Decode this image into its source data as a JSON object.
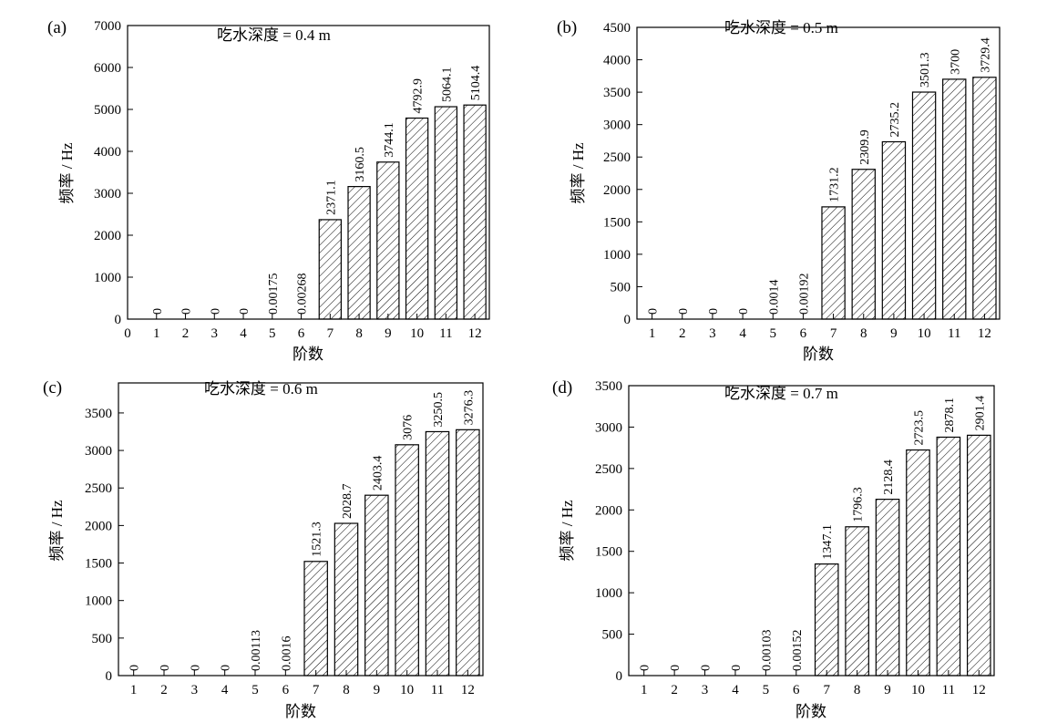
{
  "figure": {
    "bar_color": "#000000",
    "hatch": "diagonal"
  },
  "chart_data": [
    {
      "type": "bar",
      "panel_label": "(a)",
      "title": "吃水深度 = 0.4 m",
      "xlabel": "阶数",
      "ylabel": "频率 / Hz",
      "categories": [
        "1",
        "2",
        "3",
        "4",
        "5",
        "6",
        "7",
        "8",
        "9",
        "10",
        "11",
        "12"
      ],
      "values": [
        0,
        0,
        0,
        0,
        0.00175,
        0.00268,
        2371.1,
        3160.5,
        3744.1,
        4792.9,
        5064.1,
        5104.4
      ],
      "data_labels": [
        "0",
        "0",
        "0",
        "0",
        "0.00175",
        "0.00268",
        "2371.1",
        "3160.5",
        "3744.1",
        "4792.9",
        "5064.1",
        "5104.4"
      ],
      "xlim": [
        0,
        12.5
      ],
      "ylim": [
        0,
        7000
      ],
      "xticks": [
        "0",
        "1",
        "2",
        "3",
        "4",
        "5",
        "6",
        "7",
        "8",
        "9",
        "10",
        "11",
        "12"
      ],
      "yticks": [
        "0",
        "1000",
        "2000",
        "3000",
        "4000",
        "5000",
        "6000",
        "7000"
      ],
      "grid": false
    },
    {
      "type": "bar",
      "panel_label": "(b)",
      "title": "吃水深度 = 0.5 m",
      "xlabel": "阶数",
      "ylabel": "频率 / Hz",
      "categories": [
        "1",
        "2",
        "3",
        "4",
        "5",
        "6",
        "7",
        "8",
        "9",
        "10",
        "11",
        "12"
      ],
      "values": [
        0,
        0,
        0,
        0,
        0.0014,
        0.00192,
        1731.2,
        2309.9,
        2735.2,
        3501.3,
        3700,
        3729.4
      ],
      "data_labels": [
        "0",
        "0",
        "0",
        "0",
        "0.0014",
        "0.00192",
        "1731.2",
        "2309.9",
        "2735.2",
        "3501.3",
        "3700",
        "3729.4"
      ],
      "xlim": [
        0.5,
        12.5
      ],
      "ylim": [
        0,
        4500
      ],
      "xticks": [
        "1",
        "2",
        "3",
        "4",
        "5",
        "6",
        "7",
        "8",
        "9",
        "10",
        "11",
        "12"
      ],
      "yticks": [
        "0",
        "500",
        "1000",
        "1500",
        "2000",
        "2500",
        "3000",
        "3500",
        "4000",
        "4500"
      ],
      "grid": false
    },
    {
      "type": "bar",
      "panel_label": "(c)",
      "title": "吃水深度 = 0.6 m",
      "xlabel": "阶数",
      "ylabel": "频率 / Hz",
      "categories": [
        "1",
        "2",
        "3",
        "4",
        "5",
        "6",
        "7",
        "8",
        "9",
        "10",
        "11",
        "12"
      ],
      "values": [
        0,
        0,
        0,
        0,
        0.00113,
        0.0016,
        1521.3,
        2028.7,
        2403.4,
        3076,
        3250.5,
        3276.3
      ],
      "data_labels": [
        "0",
        "0",
        "0",
        "0",
        "0.00113",
        "0.0016",
        "1521.3",
        "2028.7",
        "2403.4",
        "3076",
        "3250.5",
        "3276.3"
      ],
      "xlim": [
        0.5,
        12.5
      ],
      "ylim": [
        0,
        3900
      ],
      "xticks": [
        "1",
        "2",
        "3",
        "4",
        "5",
        "6",
        "7",
        "8",
        "9",
        "10",
        "11",
        "12"
      ],
      "yticks": [
        "0",
        "500",
        "1000",
        "1500",
        "2000",
        "2500",
        "3000",
        "3500"
      ],
      "grid": false
    },
    {
      "type": "bar",
      "panel_label": "(d)",
      "title": "吃水深度 = 0.7 m",
      "xlabel": "阶数",
      "ylabel": "频率 / Hz",
      "categories": [
        "1",
        "2",
        "3",
        "4",
        "5",
        "6",
        "7",
        "8",
        "9",
        "10",
        "11",
        "12"
      ],
      "values": [
        0,
        0,
        0,
        0,
        0.00103,
        0.00152,
        1347.1,
        1796.3,
        2128.4,
        2723.5,
        2878.1,
        2901.4
      ],
      "data_labels": [
        "0",
        "0",
        "0",
        "0",
        "0.00103",
        "0.00152",
        "1347.1",
        "1796.3",
        "2128.4",
        "2723.5",
        "2878.1",
        "2901.4"
      ],
      "xlim": [
        0.5,
        12.5
      ],
      "ylim": [
        0,
        3500
      ],
      "xticks": [
        "1",
        "2",
        "3",
        "4",
        "5",
        "6",
        "7",
        "8",
        "9",
        "10",
        "11",
        "12"
      ],
      "yticks": [
        "0",
        "500",
        "1000",
        "1500",
        "2000",
        "2500",
        "3000",
        "3500"
      ],
      "grid": false
    }
  ]
}
